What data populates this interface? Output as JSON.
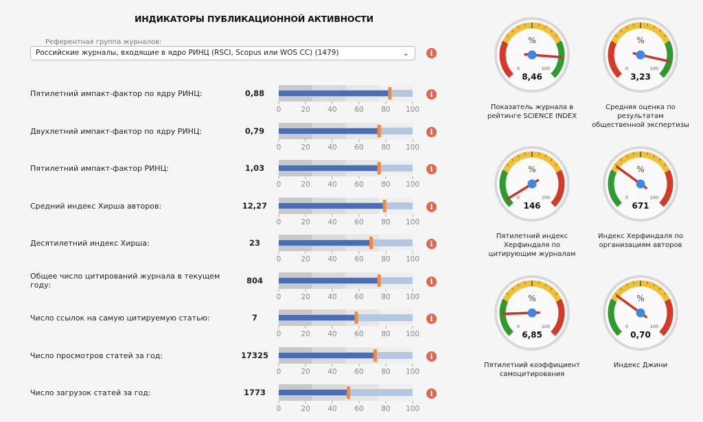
{
  "title": "ИНДИКАТОРЫ ПУБЛИКАЦИОННОЙ АКТИВНОСТИ",
  "reference_group": {
    "label": "Референтная группа журналов:",
    "selected": "Российские журналы, входящие в ядро РИНЦ (RSCI, Scopus или WOS CC) (1479)",
    "chevron_icon": "chevron-down-icon"
  },
  "info_icon": "i",
  "colors": {
    "band1": "#c8c8c8",
    "band2": "#d9d9d9",
    "band3": "#e6e6e6",
    "track": "#b4c6e0",
    "bar": "#4a6db5",
    "marker": "#f08a3c",
    "info": "#e2664d",
    "gauge_red": "#d33a2a",
    "gauge_yellow": "#f2c037",
    "gauge_green": "#2f9a2f",
    "needle": "#c8342a",
    "hub": "#3f87e0"
  },
  "chart_data": [
    {
      "type": "bar",
      "subtype": "bullet",
      "title": "Indicators percentile bullet charts",
      "xlim": [
        0,
        100
      ],
      "ticks": [
        "0",
        "20",
        "40",
        "60",
        "80",
        "100"
      ],
      "bands": [
        25,
        50,
        75,
        100
      ],
      "rows": [
        {
          "label": "Пятилетний импакт-фактор по ядру РИНЦ:",
          "value_text": "0,88",
          "bar": 82,
          "marker": 83
        },
        {
          "label": "Двухлетний импакт-фактор по ядру РИНЦ:",
          "value_text": "0,79",
          "bar": 74,
          "marker": 75
        },
        {
          "label": "Пятилетний импакт-фактор РИНЦ:",
          "value_text": "1,03",
          "bar": 74,
          "marker": 75
        },
        {
          "label": "Средний индекс Хирша авторов:",
          "value_text": "12,27",
          "bar": 78,
          "marker": 79
        },
        {
          "label": "Десятилетний индекс Хирша:",
          "value_text": "23",
          "bar": 68,
          "marker": 69
        },
        {
          "label": "Общее число цитирований журнала в текущем году:",
          "value_text": "804",
          "bar": 74,
          "marker": 75
        },
        {
          "label": "Число ссылок на самую цитируемую статью:",
          "value_text": "7",
          "bar": 57,
          "marker": 58
        },
        {
          "label": "Число просмотров статей за год:",
          "value_text": "17325",
          "bar": 71,
          "marker": 72
        },
        {
          "label": "Число загрузок статей за год:",
          "value_text": "1773",
          "bar": 51,
          "marker": 52
        }
      ]
    },
    {
      "type": "gauge",
      "unit_label": "%",
      "min_label": "0",
      "max_label": "100",
      "gauges": [
        {
          "value_text": "8,46",
          "percent": 85,
          "scheme": "red-low",
          "caption": [
            "Показатель журнала в",
            "рейтинге SCIENCE INDEX"
          ]
        },
        {
          "value_text": "3,23",
          "percent": 88,
          "scheme": "red-low",
          "caption": [
            "Средняя оценка по",
            "результатам",
            "общественной экспертизы"
          ]
        },
        {
          "value_text": "146",
          "percent": 5,
          "scheme": "green-low",
          "caption": [
            "Пятилетний индекс",
            "Херфиндаля по",
            "цитирующим журналам"
          ]
        },
        {
          "value_text": "671",
          "percent": 30,
          "scheme": "green-low",
          "caption": [
            "Индекс Херфиндаля по",
            "организациям авторов"
          ]
        },
        {
          "value_text": "6,85",
          "percent": 16,
          "scheme": "green-low",
          "caption": [
            "Пятилетний коэффициент",
            "самоцитирования"
          ]
        },
        {
          "value_text": "0,70",
          "percent": 30,
          "scheme": "green-low",
          "caption": [
            "Индекс Джини"
          ]
        }
      ]
    }
  ]
}
